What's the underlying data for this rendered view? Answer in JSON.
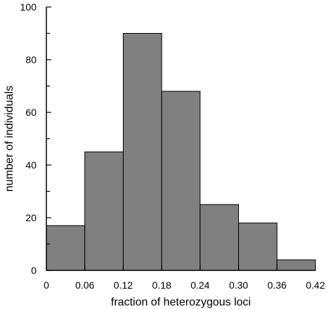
{
  "chart_data": {
    "type": "bar",
    "bins": [
      {
        "from": 0,
        "to": 0.06,
        "value": 17
      },
      {
        "from": 0.06,
        "to": 0.12,
        "value": 45
      },
      {
        "from": 0.12,
        "to": 0.18,
        "value": 90
      },
      {
        "from": 0.18,
        "to": 0.24,
        "value": 68
      },
      {
        "from": 0.24,
        "to": 0.3,
        "value": 25
      },
      {
        "from": 0.3,
        "to": 0.36,
        "value": 18
      },
      {
        "from": 0.36,
        "to": 0.42,
        "value": 4
      }
    ],
    "xlabel": "fraction of heterozygous loci",
    "ylabel": "number of individuals",
    "xlim": [
      0,
      0.42
    ],
    "ylim": [
      0,
      100
    ],
    "x_ticks": [
      "0",
      "0.06",
      "0.12",
      "0.18",
      "0.24",
      "0.30",
      "0.36",
      "0.42"
    ],
    "y_ticks": [
      "0",
      "20",
      "40",
      "60",
      "80",
      "100"
    ],
    "y_minor_ticks": [
      10,
      30,
      50,
      70,
      90
    ],
    "grid": false,
    "bar_color": "#808080",
    "edge_color": "#000000"
  }
}
